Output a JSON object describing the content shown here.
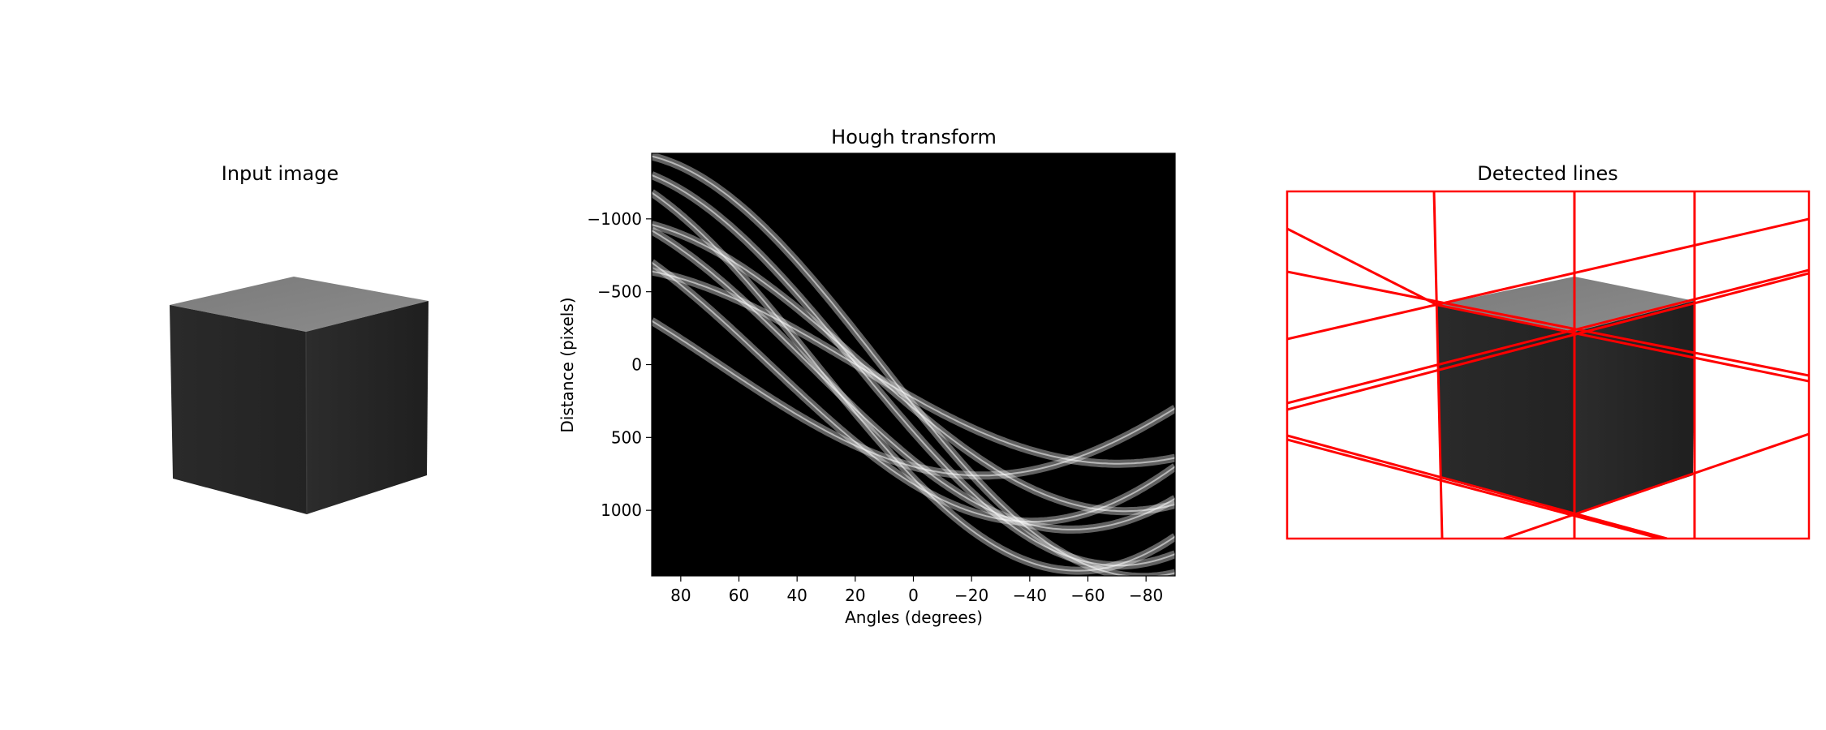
{
  "figure": {
    "panels": [
      {
        "title": "Input image"
      },
      {
        "title": "Hough transform"
      },
      {
        "title": "Detected lines"
      }
    ]
  },
  "chart_data": [
    {
      "type": "image",
      "title": "Input image",
      "axes_visible": false,
      "content": "gray cube"
    },
    {
      "type": "heatmap",
      "title": "Hough transform",
      "xlabel": "Angles (degrees)",
      "ylabel": "Distance (pixels)",
      "xlim": [
        90,
        -90
      ],
      "ylim": [
        -1450,
        1450
      ],
      "y_inverted": true,
      "xticks": [
        80,
        60,
        40,
        20,
        0,
        -20,
        -40,
        -60,
        -80
      ],
      "yticks": [
        -1000,
        -500,
        0,
        500,
        1000
      ],
      "xtick_labels": [
        "80",
        "60",
        "40",
        "20",
        "0",
        "−20",
        "−40",
        "−60",
        "−80"
      ],
      "ytick_labels": [
        "−1000",
        "−500",
        "0",
        "500",
        "1000"
      ],
      "colormap": "gray",
      "curves": [
        {
          "A": 780,
          "B": -1180
        },
        {
          "A": 280,
          "B": -1430
        },
        {
          "A": 230,
          "B": -640
        },
        {
          "A": 660,
          "B": -920
        },
        {
          "A": 460,
          "B": -1300
        },
        {
          "A": 700,
          "B": -300
        },
        {
          "A": 300,
          "B": -960
        },
        {
          "A": 820,
          "B": -700
        }
      ]
    },
    {
      "type": "image",
      "title": "Detected lines",
      "axes_visible": false,
      "overlay_color": "#ff0000",
      "content": "gray cube with red detected lines"
    }
  ],
  "colors": {
    "background": "#ffffff",
    "line_overlay": "#ff0000",
    "cube_top": "#8a8a8a",
    "cube_side": "#262626"
  }
}
